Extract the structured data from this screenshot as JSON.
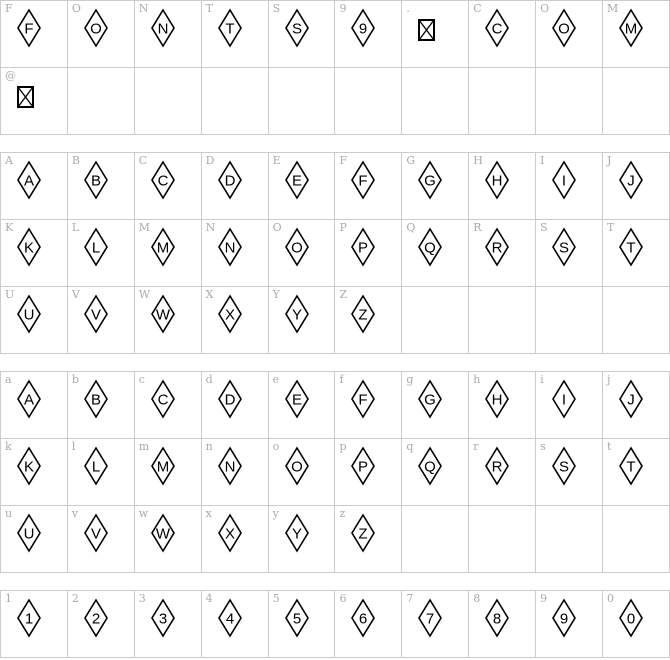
{
  "colors": {
    "grid": "#cccccc",
    "label": "#aaaaaa",
    "glyph": "#000000"
  },
  "sections": [
    {
      "cells": [
        {
          "label": "F",
          "glyph": "F"
        },
        {
          "label": "O",
          "glyph": "O"
        },
        {
          "label": "N",
          "glyph": "N"
        },
        {
          "label": "T",
          "glyph": "T"
        },
        {
          "label": "S",
          "glyph": "S"
        },
        {
          "label": "9",
          "glyph": "9"
        },
        {
          "label": ".",
          "glyph": "",
          "missing": true
        },
        {
          "label": "C",
          "glyph": "C"
        },
        {
          "label": "O",
          "glyph": "O"
        },
        {
          "label": "M",
          "glyph": "M"
        },
        {
          "label": "@",
          "glyph": "",
          "missing": true
        },
        {},
        {},
        {},
        {},
        {},
        {},
        {},
        {},
        {}
      ]
    },
    {
      "cells": [
        {
          "label": "A",
          "glyph": "A"
        },
        {
          "label": "B",
          "glyph": "B"
        },
        {
          "label": "C",
          "glyph": "C"
        },
        {
          "label": "D",
          "glyph": "D"
        },
        {
          "label": "E",
          "glyph": "E"
        },
        {
          "label": "F",
          "glyph": "F"
        },
        {
          "label": "G",
          "glyph": "G"
        },
        {
          "label": "H",
          "glyph": "H"
        },
        {
          "label": "I",
          "glyph": "I"
        },
        {
          "label": "J",
          "glyph": "J"
        },
        {
          "label": "K",
          "glyph": "K"
        },
        {
          "label": "L",
          "glyph": "L"
        },
        {
          "label": "M",
          "glyph": "M"
        },
        {
          "label": "N",
          "glyph": "N"
        },
        {
          "label": "O",
          "glyph": "O"
        },
        {
          "label": "P",
          "glyph": "P"
        },
        {
          "label": "Q",
          "glyph": "Q"
        },
        {
          "label": "R",
          "glyph": "R"
        },
        {
          "label": "S",
          "glyph": "S"
        },
        {
          "label": "T",
          "glyph": "T"
        },
        {
          "label": "U",
          "glyph": "U"
        },
        {
          "label": "V",
          "glyph": "V"
        },
        {
          "label": "W",
          "glyph": "W"
        },
        {
          "label": "X",
          "glyph": "X"
        },
        {
          "label": "Y",
          "glyph": "Y"
        },
        {
          "label": "Z",
          "glyph": "Z"
        },
        {},
        {},
        {},
        {}
      ]
    },
    {
      "cells": [
        {
          "label": "a",
          "glyph": "A"
        },
        {
          "label": "b",
          "glyph": "B"
        },
        {
          "label": "c",
          "glyph": "C"
        },
        {
          "label": "d",
          "glyph": "D"
        },
        {
          "label": "e",
          "glyph": "E"
        },
        {
          "label": "f",
          "glyph": "F"
        },
        {
          "label": "g",
          "glyph": "G"
        },
        {
          "label": "h",
          "glyph": "H"
        },
        {
          "label": "i",
          "glyph": "I"
        },
        {
          "label": "j",
          "glyph": "J"
        },
        {
          "label": "k",
          "glyph": "K"
        },
        {
          "label": "l",
          "glyph": "L"
        },
        {
          "label": "m",
          "glyph": "M"
        },
        {
          "label": "n",
          "glyph": "N"
        },
        {
          "label": "o",
          "glyph": "O"
        },
        {
          "label": "p",
          "glyph": "P"
        },
        {
          "label": "q",
          "glyph": "Q"
        },
        {
          "label": "r",
          "glyph": "R"
        },
        {
          "label": "s",
          "glyph": "S"
        },
        {
          "label": "t",
          "glyph": "T"
        },
        {
          "label": "u",
          "glyph": "U"
        },
        {
          "label": "v",
          "glyph": "V"
        },
        {
          "label": "w",
          "glyph": "W"
        },
        {
          "label": "x",
          "glyph": "X"
        },
        {
          "label": "y",
          "glyph": "Y"
        },
        {
          "label": "z",
          "glyph": "Z"
        },
        {},
        {},
        {},
        {}
      ]
    },
    {
      "cells": [
        {
          "label": "1",
          "glyph": "1"
        },
        {
          "label": "2",
          "glyph": "2"
        },
        {
          "label": "3",
          "glyph": "3"
        },
        {
          "label": "4",
          "glyph": "4"
        },
        {
          "label": "5",
          "glyph": "5"
        },
        {
          "label": "6",
          "glyph": "6"
        },
        {
          "label": "7",
          "glyph": "7"
        },
        {
          "label": "8",
          "glyph": "8"
        },
        {
          "label": "9",
          "glyph": "9"
        },
        {
          "label": "0",
          "glyph": "0"
        }
      ]
    }
  ]
}
